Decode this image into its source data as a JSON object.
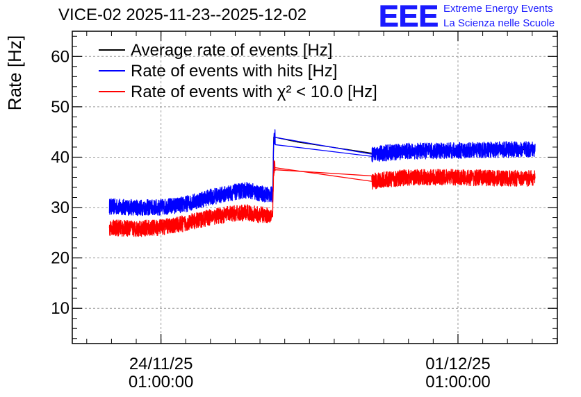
{
  "header": {
    "title": "VICE-02 2025-11-23--2025-12-02",
    "logo_line1": "Extreme Energy Events",
    "logo_line2": "La Scienza nelle Scuole",
    "logo_mark": "EEE"
  },
  "colors": {
    "average": "#000000",
    "hits": "#0000ff",
    "chi2": "#ff0000",
    "grid": "#9a9a9a",
    "logo": "#1a1aff"
  },
  "chart_data": {
    "type": "line",
    "title": "VICE-02 2025-11-23--2025-12-02",
    "xlabel": "",
    "ylabel": "Rate [Hz]",
    "x_unit": "days since 2025-11-23 00:00",
    "xlim": [
      -0.75,
      9.05
    ],
    "ylim": [
      3,
      65
    ],
    "yticks": [
      10,
      20,
      30,
      40,
      50,
      60
    ],
    "xticks": [
      {
        "x": 1.042,
        "label_date": "24/11/25",
        "label_time": "01:00:00"
      },
      {
        "x": 7.042,
        "label_date": "01/12/25",
        "label_time": "01:00:00"
      }
    ],
    "grid": true,
    "legend_position": "top-left",
    "gap": [
      3.35,
      5.3
    ],
    "series": [
      {
        "name": "Average rate of events [Hz]",
        "color_key": "average",
        "noise": 0.0,
        "points": [
          [
            0.0,
            30.2
          ],
          [
            0.5,
            30.0
          ],
          [
            1.0,
            30.0
          ],
          [
            1.5,
            30.6
          ],
          [
            2.0,
            32.0
          ],
          [
            2.5,
            33.0
          ],
          [
            2.8,
            33.5
          ],
          [
            3.0,
            32.8
          ],
          [
            3.3,
            32.5
          ],
          [
            3.32,
            44.0
          ],
          [
            3.8,
            43.0
          ],
          [
            5.3,
            40.8
          ],
          [
            6.0,
            41.2
          ],
          [
            7.0,
            41.3
          ],
          [
            8.0,
            41.5
          ],
          [
            8.6,
            41.5
          ]
        ]
      },
      {
        "name": "Rate of events with hits [Hz]",
        "color_key": "hits",
        "noise": 1.6,
        "points": [
          [
            0.0,
            30.2
          ],
          [
            0.5,
            30.0
          ],
          [
            1.0,
            30.0
          ],
          [
            1.5,
            30.6
          ],
          [
            2.0,
            32.0
          ],
          [
            2.5,
            33.0
          ],
          [
            2.8,
            33.5
          ],
          [
            3.0,
            32.8
          ],
          [
            3.3,
            32.5
          ],
          [
            3.32,
            44.0
          ],
          [
            3.8,
            43.0
          ],
          [
            5.3,
            40.6
          ],
          [
            6.0,
            41.2
          ],
          [
            7.0,
            41.3
          ],
          [
            8.0,
            41.5
          ],
          [
            8.6,
            41.5
          ]
        ]
      },
      {
        "name": "Rate of events with χ² < 10.0 [Hz]",
        "color_key": "chi2",
        "noise": 1.6,
        "points": [
          [
            0.0,
            26.0
          ],
          [
            0.5,
            25.8
          ],
          [
            1.0,
            26.0
          ],
          [
            1.5,
            26.8
          ],
          [
            2.0,
            28.0
          ],
          [
            2.5,
            28.8
          ],
          [
            2.8,
            29.0
          ],
          [
            3.0,
            28.6
          ],
          [
            3.3,
            28.5
          ],
          [
            3.32,
            38.0
          ],
          [
            3.8,
            36.5
          ],
          [
            5.3,
            35.2
          ],
          [
            6.0,
            36.0
          ],
          [
            7.0,
            36.0
          ],
          [
            8.0,
            35.8
          ],
          [
            8.6,
            35.8
          ]
        ]
      }
    ]
  }
}
